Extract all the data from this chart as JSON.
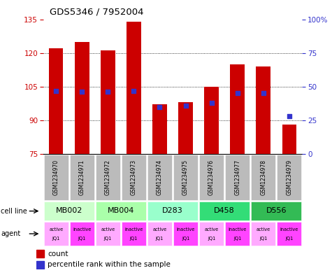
{
  "title": "GDS5346 / 7952004",
  "samples": [
    "GSM1234970",
    "GSM1234971",
    "GSM1234972",
    "GSM1234973",
    "GSM1234974",
    "GSM1234975",
    "GSM1234976",
    "GSM1234977",
    "GSM1234978",
    "GSM1234979"
  ],
  "counts": [
    122,
    125,
    121,
    134,
    97,
    98,
    105,
    115,
    114,
    88
  ],
  "percentile_ranks": [
    47,
    46,
    46,
    47,
    35,
    36,
    38,
    45,
    45,
    28
  ],
  "ylim_left": [
    75,
    135
  ],
  "ylim_right": [
    0,
    100
  ],
  "yticks_left": [
    75,
    90,
    105,
    120,
    135
  ],
  "yticks_right": [
    0,
    25,
    50,
    75,
    100
  ],
  "bar_color": "#cc0000",
  "dot_color": "#3333cc",
  "bar_bottom": 75,
  "cell_lines": [
    {
      "label": "MB002",
      "cols": [
        0,
        1
      ],
      "color": "#ccffcc"
    },
    {
      "label": "MB004",
      "cols": [
        2,
        3
      ],
      "color": "#aaffaa"
    },
    {
      "label": "D283",
      "cols": [
        4,
        5
      ],
      "color": "#99ffcc"
    },
    {
      "label": "D458",
      "cols": [
        6,
        7
      ],
      "color": "#33dd77"
    },
    {
      "label": "D556",
      "cols": [
        8,
        9
      ],
      "color": "#33bb55"
    }
  ],
  "agents": [
    "active",
    "inactive",
    "active",
    "inactive",
    "active",
    "inactive",
    "active",
    "inactive",
    "active",
    "inactive"
  ],
  "agent_labels2": [
    "JQ1",
    "JQ1",
    "JQ1",
    "JQ1",
    "JQ1",
    "JQ1",
    "JQ1",
    "JQ1",
    "JQ1",
    "JQ1"
  ],
  "active_color": "#ffaaff",
  "inactive_color": "#ff44ff",
  "sample_bg_color": "#bbbbbb",
  "left_label_color": "#cc0000",
  "right_label_color": "#3333cc",
  "legend_red_label": "count",
  "legend_blue_label": "percentile rank within the sample"
}
